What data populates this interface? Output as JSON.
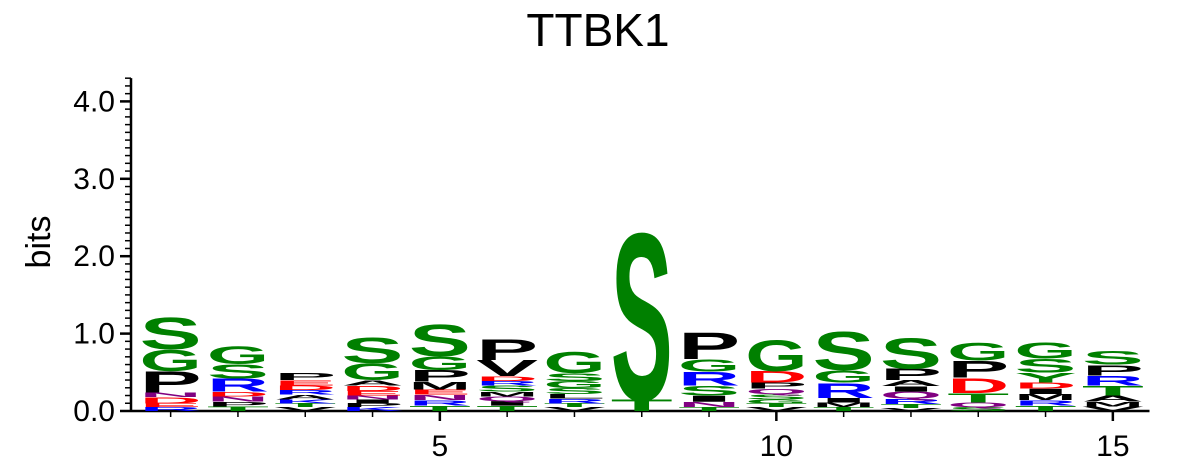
{
  "chart_data": {
    "type": "sequence-logo",
    "title": "TTBK1",
    "ylabel": "bits",
    "xlabel": "",
    "ylim": [
      0,
      4.3
    ],
    "y_ticks": [
      "0.0",
      "1.0",
      "2.0",
      "3.0",
      "4.0"
    ],
    "x_ticks": [
      5,
      10,
      15
    ],
    "positions": [
      1,
      2,
      3,
      4,
      5,
      6,
      7,
      8,
      9,
      10,
      11,
      12,
      13,
      14,
      15
    ],
    "colors": {
      "S": "#008000",
      "G": "#008000",
      "T": "#008000",
      "Y": "#008000",
      "C": "#008000",
      "P": "#000000",
      "V": "#000000",
      "A": "#000000",
      "I": "#000000",
      "L": "#000000",
      "M": "#000000",
      "F": "#000000",
      "W": "#000000",
      "R": "#0000ff",
      "K": "#0000ff",
      "H": "#0000ff",
      "D": "#ff0000",
      "E": "#ff0000",
      "N": "#800080",
      "Q": "#800080"
    },
    "stacks": [
      [
        [
          "R",
          0.05
        ],
        [
          "E",
          0.05
        ],
        [
          "D",
          0.08
        ],
        [
          "N",
          0.06
        ],
        [
          "P",
          0.28
        ],
        [
          "G",
          0.28
        ],
        [
          "S",
          0.42
        ]
      ],
      [
        [
          "T",
          0.06
        ],
        [
          "P",
          0.06
        ],
        [
          "N",
          0.07
        ],
        [
          "D",
          0.06
        ],
        [
          "R",
          0.17
        ],
        [
          "S",
          0.19
        ],
        [
          "G",
          0.23
        ]
      ],
      [
        [
          "V",
          0.05
        ],
        [
          "T",
          0.05
        ],
        [
          "K",
          0.05
        ],
        [
          "A",
          0.06
        ],
        [
          "R",
          0.06
        ],
        [
          "D",
          0.06
        ],
        [
          "E",
          0.07
        ],
        [
          "P",
          0.09
        ]
      ],
      [
        [
          "K",
          0.05
        ],
        [
          "P",
          0.05
        ],
        [
          "I",
          0.05
        ],
        [
          "N",
          0.05
        ],
        [
          "E",
          0.06
        ],
        [
          "D",
          0.07
        ],
        [
          "A",
          0.07
        ],
        [
          "G",
          0.22
        ],
        [
          "S",
          0.33
        ]
      ],
      [
        [
          "T",
          0.07
        ],
        [
          "R",
          0.07
        ],
        [
          "N",
          0.07
        ],
        [
          "E",
          0.07
        ],
        [
          "M",
          0.1
        ],
        [
          "P",
          0.15
        ],
        [
          "G",
          0.18
        ],
        [
          "S",
          0.42
        ]
      ],
      [
        [
          "T",
          0.07
        ],
        [
          "I",
          0.06
        ],
        [
          "Q",
          0.06
        ],
        [
          "M",
          0.06
        ],
        [
          "S",
          0.08
        ],
        [
          "R",
          0.06
        ],
        [
          "D",
          0.06
        ],
        [
          "V",
          0.21
        ],
        [
          "P",
          0.27
        ]
      ],
      [
        [
          "V",
          0.05
        ],
        [
          "T",
          0.05
        ],
        [
          "R",
          0.06
        ],
        [
          "L",
          0.06
        ],
        [
          "S",
          0.08
        ],
        [
          "G",
          0.09
        ],
        [
          "S",
          0.1
        ],
        [
          "G",
          0.28
        ]
      ],
      [
        [
          "T",
          0.15
        ],
        [
          "S",
          2.21
        ]
      ],
      [
        [
          "T",
          0.05
        ],
        [
          "N",
          0.07
        ],
        [
          "I",
          0.08
        ],
        [
          "S",
          0.13
        ],
        [
          "R",
          0.18
        ],
        [
          "G",
          0.16
        ],
        [
          "P",
          0.35
        ]
      ],
      [
        [
          "V",
          0.05
        ],
        [
          "T",
          0.05
        ],
        [
          "G",
          0.05
        ],
        [
          "S",
          0.07
        ],
        [
          "Q",
          0.07
        ],
        [
          "P",
          0.08
        ],
        [
          "D",
          0.15
        ],
        [
          "G",
          0.41
        ]
      ],
      [
        [
          "T",
          0.05
        ],
        [
          "M",
          0.06
        ],
        [
          "I",
          0.06
        ],
        [
          "R",
          0.2
        ],
        [
          "G",
          0.16
        ],
        [
          "S",
          0.51
        ]
      ],
      [
        [
          "V",
          0.04
        ],
        [
          "T",
          0.05
        ],
        [
          "R",
          0.07
        ],
        [
          "Q",
          0.09
        ],
        [
          "I",
          0.07
        ],
        [
          "A",
          0.08
        ],
        [
          "P",
          0.15
        ],
        [
          "S",
          0.4
        ]
      ],
      [
        [
          "S",
          0.05
        ],
        [
          "Q",
          0.06
        ],
        [
          "T",
          0.12
        ],
        [
          "D",
          0.2
        ],
        [
          "P",
          0.22
        ],
        [
          "G",
          0.23
        ]
      ],
      [
        [
          "T",
          0.07
        ],
        [
          "R",
          0.07
        ],
        [
          "M",
          0.08
        ],
        [
          "I",
          0.07
        ],
        [
          "D",
          0.08
        ],
        [
          "Y",
          0.13
        ],
        [
          "S",
          0.18
        ],
        [
          "G",
          0.21
        ]
      ],
      [
        [
          "V",
          0.06
        ],
        [
          "M",
          0.06
        ],
        [
          "A",
          0.08
        ],
        [
          "T",
          0.13
        ],
        [
          "R",
          0.13
        ],
        [
          "P",
          0.14
        ],
        [
          "S",
          0.18
        ]
      ]
    ]
  }
}
